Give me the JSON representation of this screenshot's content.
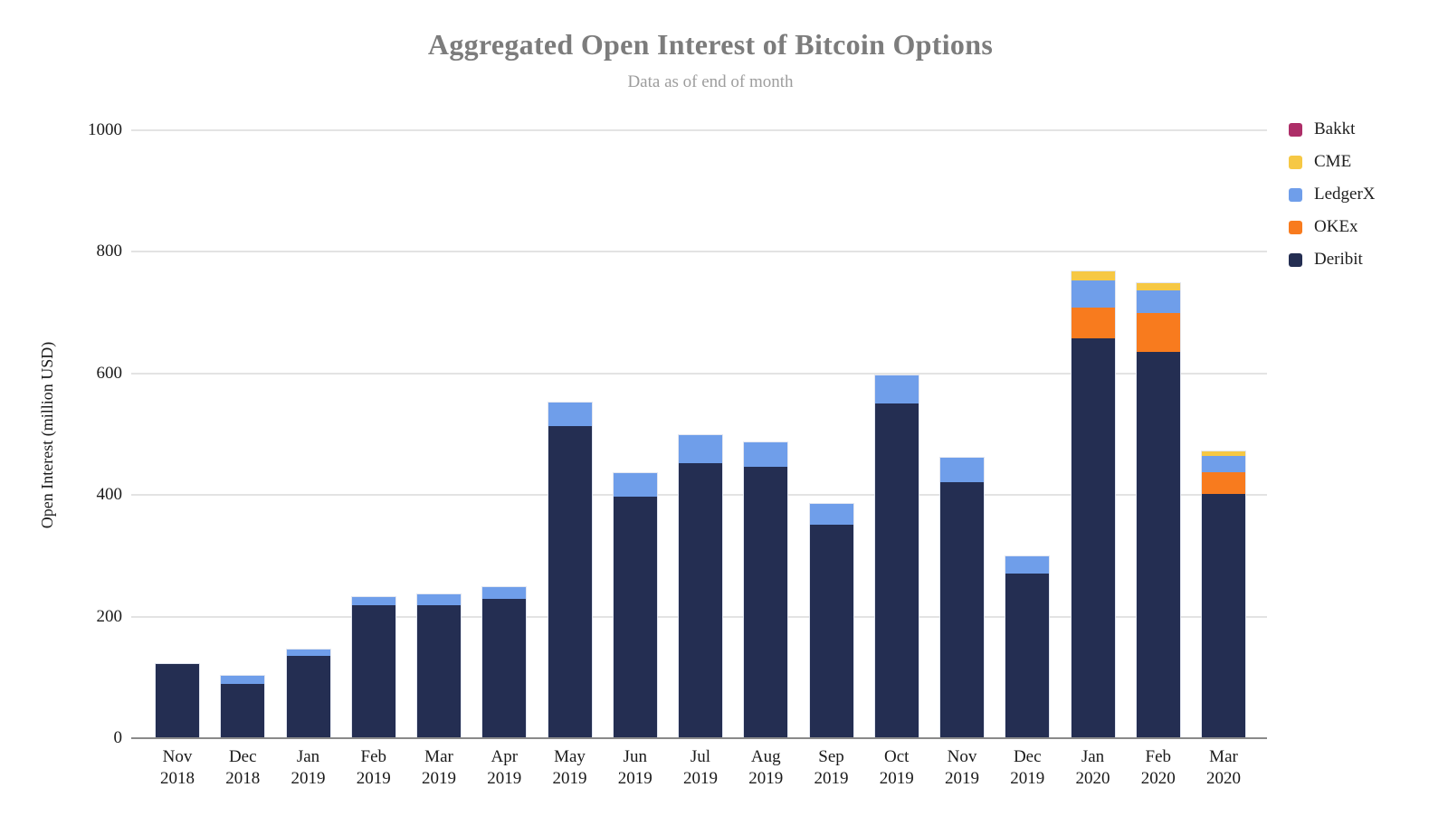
{
  "title": "Aggregated Open Interest of Bitcoin Options",
  "subtitle": "Data as of end of month",
  "y_axis_title": "Open Interest (million USD)",
  "chart_data": {
    "type": "bar",
    "stacked": true,
    "title": "Aggregated Open Interest of Bitcoin Options",
    "subtitle": "Data as of end of month",
    "xlabel": "",
    "ylabel": "Open Interest (million USD)",
    "ylim": [
      0,
      1000
    ],
    "yticks": [
      0,
      200,
      400,
      600,
      800,
      1000
    ],
    "grid": true,
    "legend_position": "top-right",
    "categories": [
      {
        "month": "Nov",
        "year": "2018"
      },
      {
        "month": "Dec",
        "year": "2018"
      },
      {
        "month": "Jan",
        "year": "2019"
      },
      {
        "month": "Feb",
        "year": "2019"
      },
      {
        "month": "Mar",
        "year": "2019"
      },
      {
        "month": "Apr",
        "year": "2019"
      },
      {
        "month": "May",
        "year": "2019"
      },
      {
        "month": "Jun",
        "year": "2019"
      },
      {
        "month": "Jul",
        "year": "2019"
      },
      {
        "month": "Aug",
        "year": "2019"
      },
      {
        "month": "Sep",
        "year": "2019"
      },
      {
        "month": "Oct",
        "year": "2019"
      },
      {
        "month": "Nov",
        "year": "2019"
      },
      {
        "month": "Dec",
        "year": "2019"
      },
      {
        "month": "Jan",
        "year": "2020"
      },
      {
        "month": "Feb",
        "year": "2020"
      },
      {
        "month": "Mar",
        "year": "2020"
      }
    ],
    "series": [
      {
        "name": "Bakkt",
        "color": "#AD2E68",
        "values": [
          0,
          0,
          0,
          0,
          0,
          0,
          0,
          0,
          0,
          0,
          0,
          0,
          0,
          0,
          0,
          0,
          0
        ]
      },
      {
        "name": "CME",
        "color": "#F6C844",
        "values": [
          0,
          0,
          0,
          0,
          0,
          0,
          0,
          0,
          0,
          0,
          0,
          0,
          0,
          0,
          15,
          12,
          7
        ]
      },
      {
        "name": "LedgerX",
        "color": "#6F9EEA",
        "values": [
          0,
          13,
          11,
          13,
          17,
          20,
          39,
          38,
          46,
          39,
          35,
          47,
          40,
          28,
          45,
          37,
          27
        ]
      },
      {
        "name": "OKEx",
        "color": "#F87B1E",
        "values": [
          0,
          0,
          0,
          0,
          0,
          0,
          0,
          0,
          0,
          0,
          0,
          0,
          0,
          0,
          50,
          64,
          36
        ]
      },
      {
        "name": "Deribit",
        "color": "#242E52",
        "values": [
          122,
          90,
          135,
          219,
          219,
          229,
          513,
          398,
          452,
          447,
          351,
          550,
          421,
          271,
          658,
          635,
          402
        ]
      }
    ],
    "stack_order_bottom_to_top": [
      "Deribit",
      "OKEx",
      "LedgerX",
      "CME",
      "Bakkt"
    ]
  }
}
